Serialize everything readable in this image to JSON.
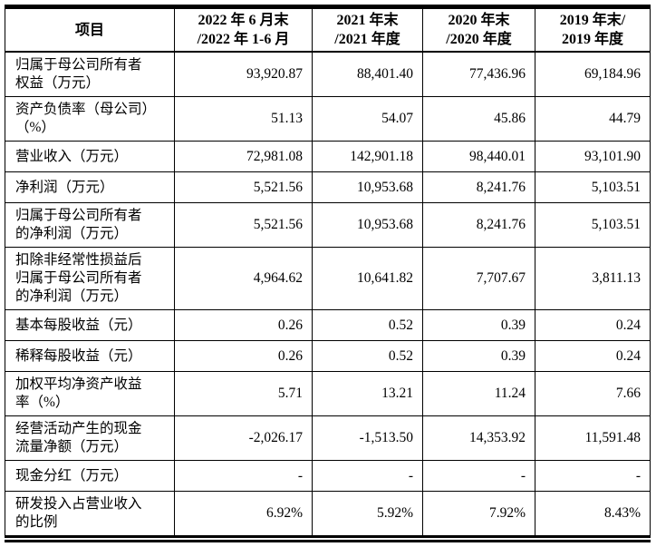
{
  "table": {
    "colors": {
      "border": "#000000",
      "text": "#000000",
      "background": "#ffffff"
    },
    "columns": [
      {
        "label": "项目"
      },
      {
        "label": "2022 年 6 月末\n/2022 年 1-6 月"
      },
      {
        "label": "2021 年末\n/2021 年度"
      },
      {
        "label": "2020 年末\n/2020 年度"
      },
      {
        "label": "2019 年末/\n2019 年度"
      }
    ],
    "rows": [
      {
        "item": "归属于母公司所有者\n权益（万元）",
        "values": [
          "93,920.87",
          "88,401.40",
          "77,436.96",
          "69,184.96"
        ]
      },
      {
        "item": "资产负债率（母公司）\n（%）",
        "values": [
          "51.13",
          "54.07",
          "45.86",
          "44.79"
        ]
      },
      {
        "item": "营业收入（万元）",
        "values": [
          "72,981.08",
          "142,901.18",
          "98,440.01",
          "93,101.90"
        ]
      },
      {
        "item": "净利润（万元）",
        "values": [
          "5,521.56",
          "10,953.68",
          "8,241.76",
          "5,103.51"
        ]
      },
      {
        "item": "归属于母公司所有者\n的净利润（万元）",
        "values": [
          "5,521.56",
          "10,953.68",
          "8,241.76",
          "5,103.51"
        ]
      },
      {
        "item": "扣除非经常性损益后\n归属于母公司所有者\n的净利润（万元）",
        "values": [
          "4,964.62",
          "10,641.82",
          "7,707.67",
          "3,811.13"
        ]
      },
      {
        "item": "基本每股收益（元）",
        "values": [
          "0.26",
          "0.52",
          "0.39",
          "0.24"
        ]
      },
      {
        "item": "稀释每股收益（元）",
        "values": [
          "0.26",
          "0.52",
          "0.39",
          "0.24"
        ]
      },
      {
        "item": "加权平均净资产收益\n率（%）",
        "values": [
          "5.71",
          "13.21",
          "11.24",
          "7.66"
        ]
      },
      {
        "item": "经营活动产生的现金\n流量净额（万元）",
        "values": [
          "-2,026.17",
          "-1,513.50",
          "14,353.92",
          "11,591.48"
        ]
      },
      {
        "item": "现金分红（万元）",
        "values": [
          "-",
          "-",
          "-",
          "-"
        ]
      },
      {
        "item": "研发投入占营业收入\n的比例",
        "values": [
          "6.92%",
          "5.92%",
          "7.92%",
          "8.43%"
        ]
      }
    ]
  }
}
